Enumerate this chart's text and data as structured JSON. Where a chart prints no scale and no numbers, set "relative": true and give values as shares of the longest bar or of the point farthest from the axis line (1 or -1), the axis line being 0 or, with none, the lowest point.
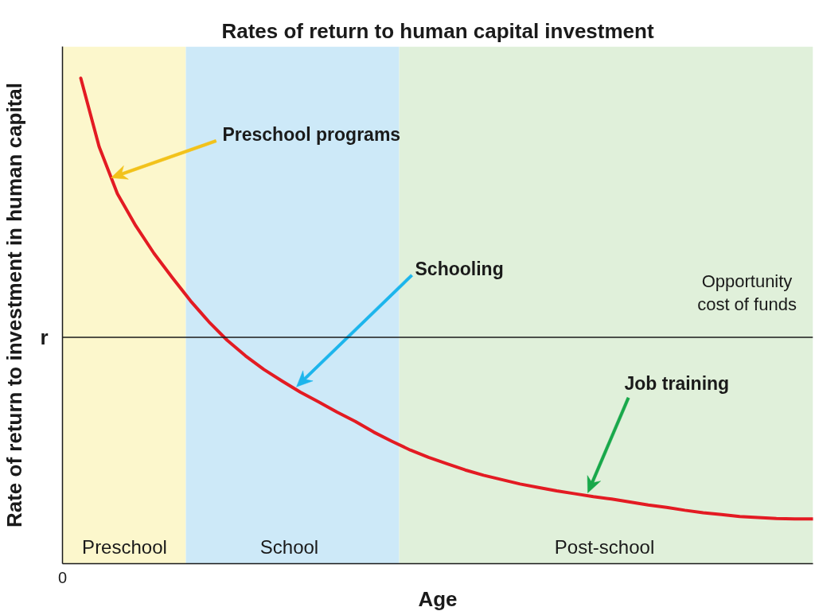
{
  "chart_data": {
    "type": "line",
    "title": "Rates of return to human capital investment",
    "xlabel": "Age",
    "ylabel": "Rate of return to investment in human capital",
    "relative": true,
    "categories": [
      null,
      null,
      null,
      null,
      null,
      null,
      null,
      null,
      null,
      null,
      null,
      null,
      null,
      null,
      null,
      null,
      null,
      null,
      null,
      null,
      null,
      null,
      null,
      null,
      null,
      null,
      null,
      null,
      null,
      null,
      null,
      null,
      null,
      null,
      null,
      null,
      null,
      null,
      null,
      null,
      null
    ],
    "series": [
      {
        "color": "#e31b23",
        "values": [
          1,
          0.859,
          0.762,
          0.696,
          0.639,
          0.589,
          0.541,
          0.498,
          0.46,
          0.428,
          0.4,
          0.376,
          0.353,
          0.333,
          0.312,
          0.293,
          0.271,
          0.252,
          0.234,
          0.219,
          0.206,
          0.193,
          0.182,
          0.173,
          0.164,
          0.157,
          0.15,
          0.144,
          0.138,
          0.133,
          0.127,
          0.121,
          0.116,
          0.11,
          0.105,
          0.101,
          0.097,
          0.095,
          0.093,
          0.092,
          0.092
        ]
      }
    ],
    "ref_lines": [
      {
        "axis": "y",
        "value": 0.466,
        "label": "r",
        "color": "#1a1a1a"
      }
    ],
    "annotations": [
      "Preschool programs",
      "Schooling",
      "Opportunity\ncost of funds",
      "Job training",
      "Preschool",
      "School",
      "Post-school",
      "0"
    ]
  }
}
